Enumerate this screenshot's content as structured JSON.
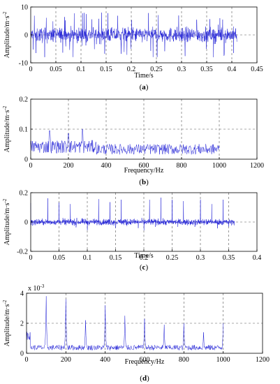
{
  "chart_data": [
    {
      "type": "line",
      "panel_label": "a",
      "signal": "time-domain vibration (noise-like)",
      "xlabel": "Time/s",
      "ylabel": "Amplitude/m·s",
      "ylabel_exp": "-2",
      "xlim": [
        0,
        0.45
      ],
      "ylim": [
        -10,
        10
      ],
      "xticks": [
        "0",
        "0.05",
        "0.1",
        "0.15",
        "0.2",
        "0.25",
        "0.3",
        "0.35",
        "0.4",
        "0.45"
      ],
      "xtick_values": [
        0,
        0.05,
        0.1,
        0.15,
        0.2,
        0.25,
        0.3,
        0.35,
        0.4,
        0.45
      ],
      "yticks": [
        "-10",
        "0",
        "10"
      ],
      "ytick_values": [
        -10,
        0,
        10
      ],
      "data_range_x": [
        0,
        0.41
      ],
      "envelope": 4.5,
      "peak": 8,
      "grid": true,
      "color": "#1f1fd6"
    },
    {
      "type": "line",
      "panel_label": "b",
      "signal": "amplitude spectrum (broadband)",
      "xlabel": "Frequency/Hz",
      "ylabel": "Amplitude/m·s",
      "ylabel_exp": "-2",
      "xlim": [
        0,
        1200
      ],
      "ylim": [
        0,
        0.2
      ],
      "xticks": [
        "0",
        "200",
        "400",
        "600",
        "800",
        "1000",
        "1200"
      ],
      "xtick_values": [
        0,
        200,
        400,
        600,
        800,
        1000,
        1200
      ],
      "yticks": [
        "0",
        "0.1",
        "0.2"
      ],
      "ytick_values": [
        0,
        0.1,
        0.2
      ],
      "data_range_x": [
        0,
        1000
      ],
      "level": 0.035,
      "peaks": [
        {
          "x": 100,
          "y": 0.095
        },
        {
          "x": 200,
          "y": 0.085
        },
        {
          "x": 275,
          "y": 0.1
        }
      ],
      "grid": true,
      "color": "#1f1fd6"
    },
    {
      "type": "line",
      "panel_label": "c",
      "signal": "time-domain vibration with periodic impulses",
      "xlabel": "Time/s",
      "ylabel": "Amplitude/m·s",
      "ylabel_exp": "-2",
      "xlim": [
        0,
        0.4
      ],
      "ylim": [
        -0.2,
        0.2
      ],
      "xticks": [
        "0",
        "0.05",
        "0.1",
        "0.15",
        "0.2",
        "0.25",
        "0.3",
        "0.35",
        "0.4"
      ],
      "xtick_values": [
        0,
        0.05,
        0.1,
        0.15,
        0.2,
        0.25,
        0.3,
        0.35,
        0.4
      ],
      "yticks": [
        "-0.2",
        "0",
        "0.2"
      ],
      "ytick_values": [
        -0.2,
        0,
        0.2
      ],
      "data_range_x": [
        0,
        0.36
      ],
      "envelope": 0.035,
      "impulse_period": 0.01,
      "impulse_height": 0.17,
      "grid": true,
      "color": "#1f1fd6"
    },
    {
      "type": "line",
      "panel_label": "d",
      "signal": "envelope spectrum with harmonic peaks",
      "xlabel": "Frequency/Hz",
      "ylabel": "Amplitude/m·s",
      "ylabel_exp": "-2",
      "scale_label": "x 10",
      "scale_exp": "-3",
      "xlim": [
        0,
        1200
      ],
      "ylim": [
        0,
        4
      ],
      "xticks": [
        "0",
        "200",
        "400",
        "600",
        "800",
        "1000",
        "1200"
      ],
      "xtick_values": [
        0,
        200,
        400,
        600,
        800,
        1000,
        1200
      ],
      "yticks": [
        "0",
        "2",
        "4"
      ],
      "ytick_values": [
        0,
        2,
        4
      ],
      "data_range_x": [
        0,
        1000
      ],
      "level": 0.4,
      "peaks": [
        {
          "x": 100,
          "y": 3.8
        },
        {
          "x": 200,
          "y": 3.6
        },
        {
          "x": 300,
          "y": 2.2
        },
        {
          "x": 400,
          "y": 3.2
        },
        {
          "x": 500,
          "y": 2.5
        },
        {
          "x": 600,
          "y": 2.3
        },
        {
          "x": 700,
          "y": 1.9
        },
        {
          "x": 800,
          "y": 2.0
        },
        {
          "x": 900,
          "y": 1.4
        },
        {
          "x": 1000,
          "y": 2.0
        }
      ],
      "grid": true,
      "color": "#1f1fd6"
    }
  ]
}
